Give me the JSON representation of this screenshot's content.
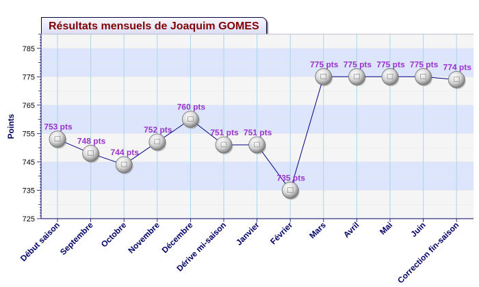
{
  "chart_data": {
    "type": "line",
    "title": "Résultats mensuels de Joaquim GOMES",
    "ylabel": "Points",
    "xlabel": "",
    "ylim": [
      725,
      790
    ],
    "yticks": [
      725,
      735,
      745,
      755,
      765,
      775,
      785
    ],
    "grid": true,
    "categories": [
      "Début saison",
      "Septembre",
      "Octobre",
      "Novembre",
      "Décembre",
      "Dérive mi-saison",
      "Janvier",
      "Février",
      "Mars",
      "Avril",
      "Mai",
      "Juin",
      "Correction fin-saison"
    ],
    "values": [
      753,
      748,
      744,
      752,
      760,
      751,
      751,
      735,
      775,
      775,
      775,
      775,
      774
    ],
    "labels": [
      "753 pts",
      "748 pts",
      "744 pts",
      "752 pts",
      "760 pts",
      "751 pts",
      "751 pts",
      "735 pts",
      "775 pts",
      "775 pts",
      "775 pts",
      "775 pts",
      "774 pts"
    ],
    "colors": {
      "line": "#000080",
      "label": "#9933cc",
      "band": "#dce5fb",
      "band_alt": "#f5f5f5",
      "vgrid": "#a8d4ec",
      "axis_text": "#000066",
      "title": "#800000"
    }
  }
}
